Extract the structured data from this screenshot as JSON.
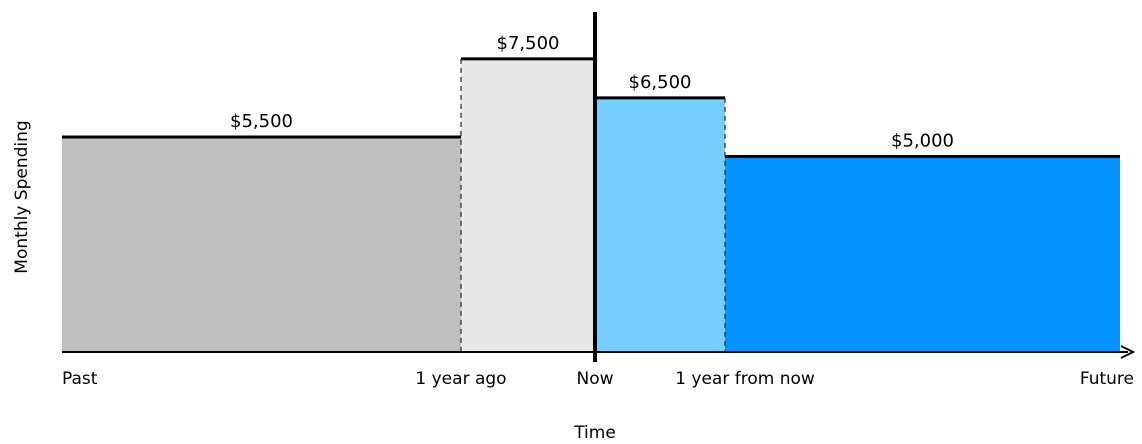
{
  "chart_data": {
    "type": "area",
    "title": "",
    "xlabel": "Time",
    "ylabel": "Monthly Spending",
    "ylim": [
      0,
      8500
    ],
    "x_ticks": [
      "Past",
      "1 year ago",
      "Now",
      "1 year from now",
      "Future"
    ],
    "segments": [
      {
        "from": "Past",
        "to": "1 year ago",
        "value": 5500,
        "label": "$5,500",
        "color": "#bfbfbf"
      },
      {
        "from": "1 year ago",
        "to": "Now",
        "value": 7500,
        "label": "$7,500",
        "color": "#e8e8e8"
      },
      {
        "from": "Now",
        "to": "1 year from now",
        "value": 6500,
        "label": "$6,500",
        "color": "#76cfff"
      },
      {
        "from": "1 year from now",
        "to": "Future",
        "value": 5000,
        "label": "$5,000",
        "color": "#0594ff"
      }
    ]
  }
}
